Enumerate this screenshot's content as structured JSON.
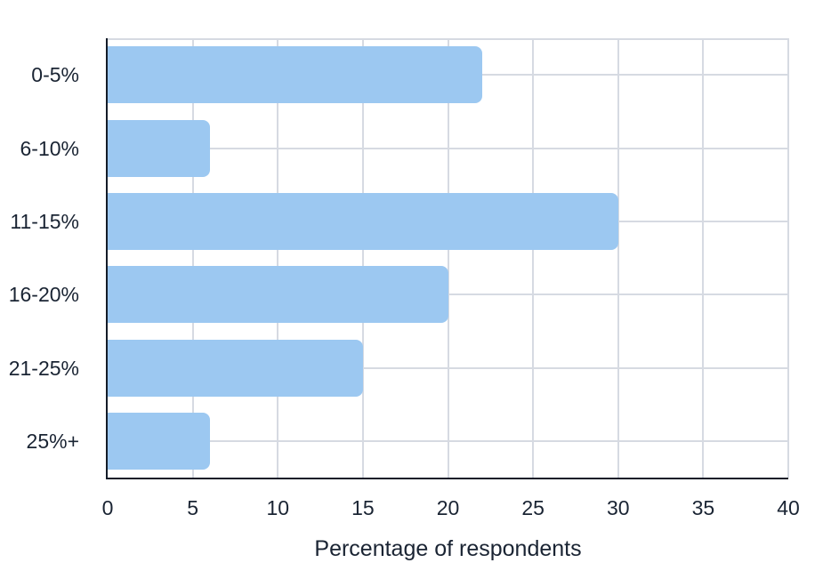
{
  "chart_data": {
    "type": "bar",
    "orientation": "horizontal",
    "title": "",
    "xlabel": "Percentage of respondents",
    "ylabel": "",
    "categories": [
      "0-5%",
      "6-10%",
      "11-15%",
      "16-20%",
      "21-25%",
      "25%+"
    ],
    "values": [
      22,
      6,
      30,
      20,
      15,
      6
    ],
    "xlim": [
      0,
      40
    ],
    "xticks": [
      0,
      5,
      10,
      15,
      20,
      25,
      30,
      35,
      40
    ],
    "grid": true,
    "legend": false
  },
  "colors": {
    "background": "#ffffff",
    "bar": "#9CC8F1",
    "grid": "#D6DAE2",
    "spine": "#141C28",
    "text": "#1A2433"
  }
}
